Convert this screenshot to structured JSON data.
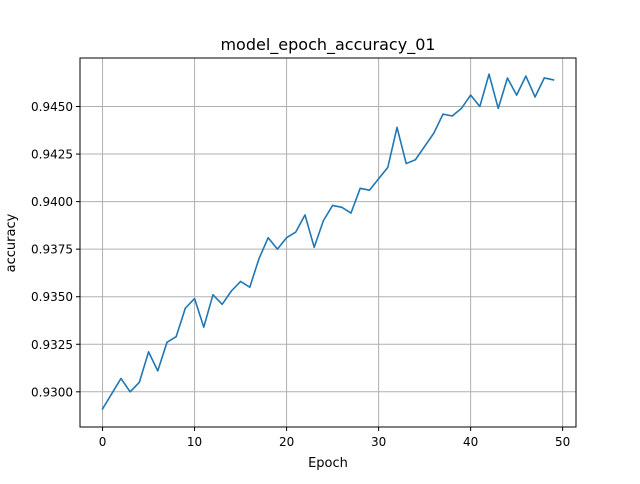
{
  "chart_data": {
    "type": "line",
    "title": "model_epoch_accuracy_01",
    "xlabel": "Epoch",
    "ylabel": "accuracy",
    "xlim": [
      -2.45,
      51.45
    ],
    "ylim": [
      0.92815,
      0.94755
    ],
    "xticks": [
      0,
      10,
      20,
      30,
      40,
      50
    ],
    "xtick_labels": [
      "0",
      "10",
      "20",
      "30",
      "40",
      "50"
    ],
    "yticks": [
      0.93,
      0.9325,
      0.935,
      0.9375,
      0.94,
      0.9425,
      0.945
    ],
    "ytick_labels": [
      "0.9300",
      "0.9325",
      "0.9350",
      "0.9375",
      "0.9400",
      "0.9425",
      "0.9450"
    ],
    "grid": true,
    "line_color": "#1f77b4",
    "series": [
      {
        "x": [
          0,
          1,
          2,
          3,
          4,
          5,
          6,
          7,
          8,
          9,
          10,
          11,
          12,
          13,
          14,
          15,
          16,
          17,
          18,
          19,
          20,
          21,
          22,
          23,
          24,
          25,
          26,
          27,
          28,
          29,
          30,
          31,
          32,
          33,
          34,
          35,
          36,
          37,
          38,
          39,
          40,
          41,
          42,
          43,
          44,
          45,
          46,
          47,
          48,
          49
        ],
        "values": [
          0.9291,
          0.9299,
          0.9307,
          0.93,
          0.9305,
          0.9321,
          0.9311,
          0.9326,
          0.9329,
          0.9344,
          0.9349,
          0.9334,
          0.9351,
          0.9346,
          0.9353,
          0.9358,
          0.9355,
          0.937,
          0.9381,
          0.9375,
          0.9381,
          0.9384,
          0.9393,
          0.9376,
          0.939,
          0.9398,
          0.9397,
          0.9394,
          0.9407,
          0.9406,
          0.9412,
          0.9418,
          0.9439,
          0.942,
          0.9422,
          0.9429,
          0.9436,
          0.9446,
          0.9445,
          0.9449,
          0.9456,
          0.945,
          0.9467,
          0.9449,
          0.9465,
          0.9456,
          0.9466,
          0.9455,
          0.9465,
          0.9464
        ]
      }
    ]
  }
}
